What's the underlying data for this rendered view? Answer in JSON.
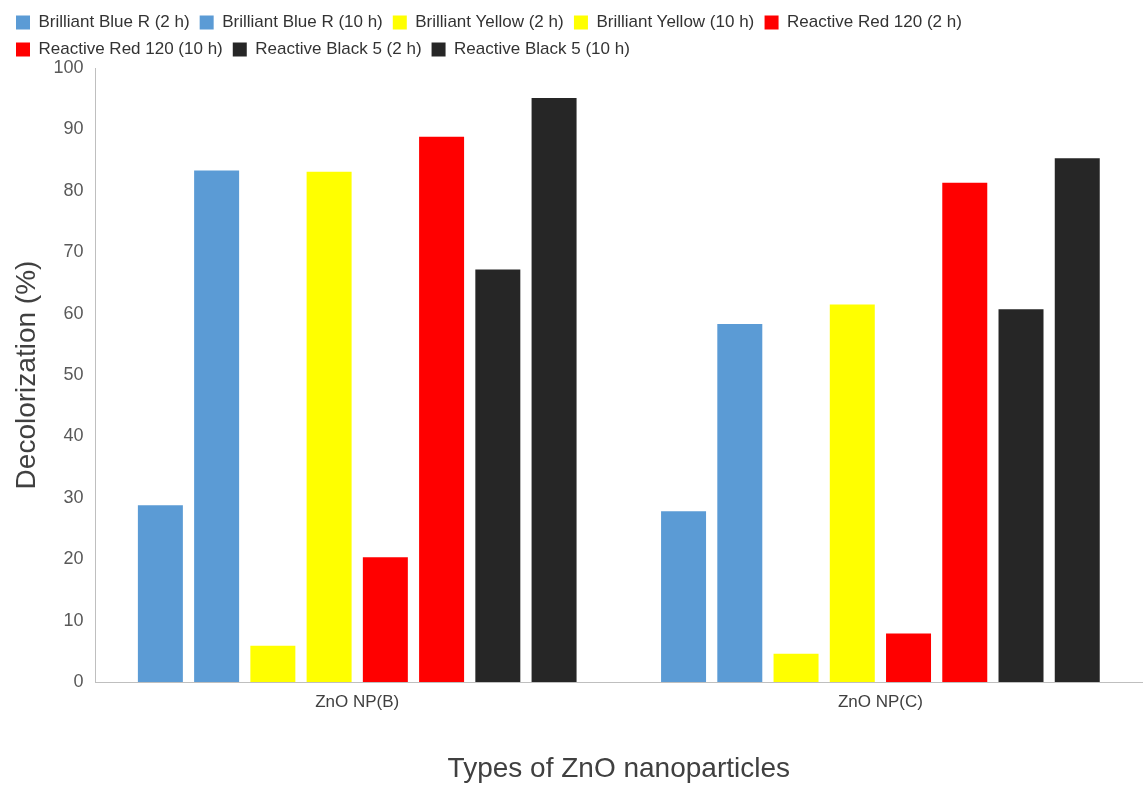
{
  "chart_data": {
    "type": "bar",
    "xlabel": "Types of ZnO nanoparticles",
    "ylabel": "Decolorization (%)",
    "categories": [
      "ZnO NP(B)",
      "ZnO NP(C)"
    ],
    "series": [
      {
        "name": "Brilliant Blue R (2 h)",
        "color": "#5b9bd5",
        "values": [
          28.8,
          27.8
        ]
      },
      {
        "name": "Brilliant Blue R (10 h)",
        "color": "#5b9bd5",
        "values": [
          83.3,
          58.3
        ]
      },
      {
        "name": "Brilliant Yellow (2 h)",
        "color": "#ffff00",
        "values": [
          5.9,
          4.6
        ]
      },
      {
        "name": "Brilliant Yellow (10 h)",
        "color": "#ffff00",
        "values": [
          83.1,
          61.5
        ]
      },
      {
        "name": "Reactive Red 120 (2 h)",
        "color": "#ff0000",
        "values": [
          20.3,
          7.9
        ]
      },
      {
        "name": "Reactive Red 120 (10 h)",
        "color": "#ff0000",
        "values": [
          88.8,
          81.3
        ]
      },
      {
        "name": "Reactive Black 5 (2 h)",
        "color": "#262626",
        "values": [
          67.2,
          60.7
        ]
      },
      {
        "name": "Reactive Black 5 (10 h)",
        "color": "#262626",
        "values": [
          95.1,
          85.3
        ]
      }
    ],
    "ylim": [
      0,
      100
    ],
    "yticks": [
      0,
      10,
      20,
      30,
      40,
      50,
      60,
      70,
      80,
      90,
      100
    ],
    "grid": false,
    "legend": "top"
  }
}
